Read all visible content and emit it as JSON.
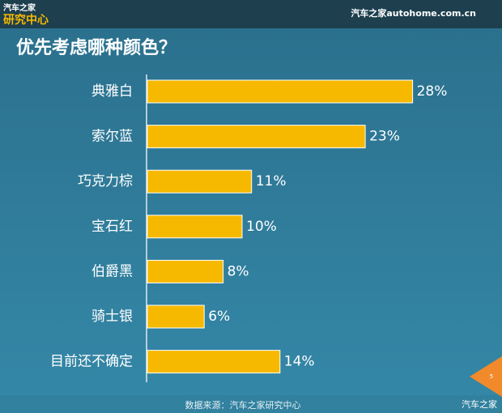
{
  "header": {
    "logo_top": "汽车之家",
    "logo_bottom": "研究中心",
    "site": "汽车之家autohome.com.cn"
  },
  "chart_data": {
    "type": "barh",
    "title": "优先考虑哪种颜色？",
    "categories": [
      "典雅白",
      "索尔蓝",
      "巧克力棕",
      "宝石红",
      "伯爵黑",
      "骑士银",
      "目前还不确定"
    ],
    "values": [
      28,
      23,
      11,
      10,
      8,
      6,
      14
    ],
    "value_labels": [
      "28%",
      "23%",
      "11%",
      "10%",
      "8%",
      "6%",
      "14%"
    ],
    "color": "#f7b900",
    "source": "数据来源：汽车之家研究中心"
  },
  "footer": {
    "page": "5",
    "watermark": "汽车之家"
  }
}
